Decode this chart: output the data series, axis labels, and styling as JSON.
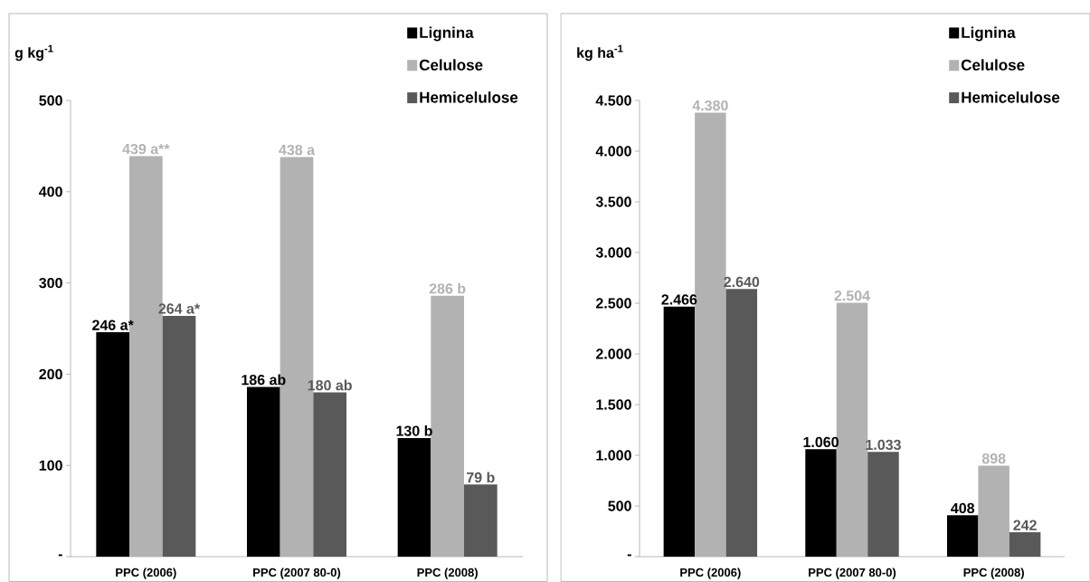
{
  "chart_data": [
    {
      "type": "bar",
      "ylabel": "g kg$^{-1}$",
      "categories": [
        "PPC (2006)",
        "PPC (2007 80-0)",
        "PPC (2008)"
      ],
      "series": [
        {
          "name": "Lignina",
          "color": "#000000",
          "values": [
            246,
            186,
            130
          ],
          "value_labels": [
            "246 a*",
            "186 ab",
            "130 b"
          ]
        },
        {
          "name": "Celulose",
          "color": "#b2b2b2",
          "values": [
            439,
            438,
            286
          ],
          "value_labels": [
            "439 a**",
            "438 a",
            "286 b"
          ]
        },
        {
          "name": "Hemicelulose",
          "color": "#595959",
          "values": [
            264,
            180,
            79
          ],
          "value_labels": [
            "264 a*",
            "180 ab",
            "79 b"
          ]
        }
      ],
      "ylim": [
        0,
        500
      ],
      "yticks": [
        {
          "value": 0,
          "label": "-"
        },
        100,
        200,
        300,
        400,
        500
      ],
      "legend": "top right"
    },
    {
      "type": "bar",
      "ylabel": "kg ha$^{-1}$",
      "categories": [
        "PPC (2006)",
        "PPC (2007 80-0)",
        "PPC (2008)"
      ],
      "series": [
        {
          "name": "Lignina",
          "color": "#000000",
          "values": [
            2466,
            1060,
            408
          ],
          "value_labels": [
            "2.466",
            "1.060",
            "408"
          ]
        },
        {
          "name": "Celulose",
          "color": "#b2b2b2",
          "values": [
            4380,
            2504,
            898
          ],
          "value_labels": [
            "4.380",
            "2.504",
            "898"
          ]
        },
        {
          "name": "Hemicelulose",
          "color": "#595959",
          "values": [
            2640,
            1033,
            242
          ],
          "value_labels": [
            "2.640",
            "1.033",
            "242"
          ]
        }
      ],
      "ylim": [
        0,
        4500
      ],
      "yticks": [
        {
          "value": 0,
          "label": "-"
        },
        500,
        {
          "value": 1000,
          "label": "1.000"
        },
        {
          "value": 1500,
          "label": "1.500"
        },
        {
          "value": 2000,
          "label": "2.000"
        },
        {
          "value": 2500,
          "label": "2.500"
        },
        {
          "value": 3000,
          "label": "3.000"
        },
        {
          "value": 3500,
          "label": "3.500"
        },
        {
          "value": 4000,
          "label": "4.000"
        },
        {
          "value": 4500,
          "label": "4.500"
        }
      ],
      "legend": "top right"
    }
  ]
}
